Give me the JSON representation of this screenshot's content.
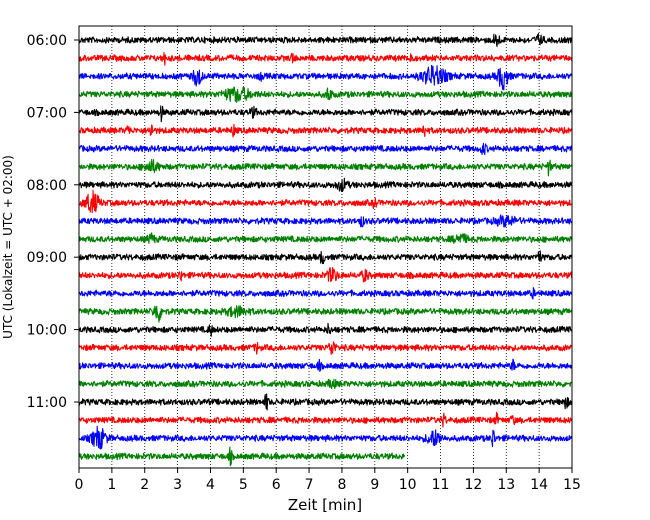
{
  "chart_data": {
    "type": "line",
    "xlabel": "Zeit  [min]",
    "ylabel": "UTC (Lokalzeit = UTC + 02:00)",
    "xlim": [
      0,
      15
    ],
    "x_ticks": [
      "0",
      "1",
      "2",
      "3",
      "4",
      "5",
      "6",
      "7",
      "8",
      "9",
      "10",
      "11",
      "12",
      "13",
      "14",
      "15"
    ],
    "y_tick_labels": [
      "06:00",
      "07:00",
      "08:00",
      "09:00",
      "10:00",
      "11:00"
    ],
    "grid": {
      "x": "dotted-vertical",
      "y": false
    },
    "trace_colors": [
      "#000000",
      "#ff0000",
      "#0000ff",
      "#008000"
    ],
    "traces": [
      {
        "start": "06:00",
        "end_min": 15
      },
      {
        "start": "06:15",
        "end_min": 15
      },
      {
        "start": "06:30",
        "end_min": 15
      },
      {
        "start": "06:45",
        "end_min": 15
      },
      {
        "start": "07:00",
        "end_min": 15
      },
      {
        "start": "07:15",
        "end_min": 15
      },
      {
        "start": "07:30",
        "end_min": 15
      },
      {
        "start": "07:45",
        "end_min": 15
      },
      {
        "start": "08:00",
        "end_min": 15
      },
      {
        "start": "08:15",
        "end_min": 15
      },
      {
        "start": "08:30",
        "end_min": 15
      },
      {
        "start": "08:45",
        "end_min": 15
      },
      {
        "start": "09:00",
        "end_min": 15
      },
      {
        "start": "09:15",
        "end_min": 15
      },
      {
        "start": "09:30",
        "end_min": 15
      },
      {
        "start": "09:45",
        "end_min": 15
      },
      {
        "start": "10:00",
        "end_min": 15
      },
      {
        "start": "10:15",
        "end_min": 15
      },
      {
        "start": "10:30",
        "end_min": 15
      },
      {
        "start": "10:45",
        "end_min": 15
      },
      {
        "start": "11:00",
        "end_min": 15
      },
      {
        "start": "11:15",
        "end_min": 15
      },
      {
        "start": "11:30",
        "end_min": 15
      },
      {
        "start": "11:45",
        "end_min": 9.9
      }
    ]
  }
}
